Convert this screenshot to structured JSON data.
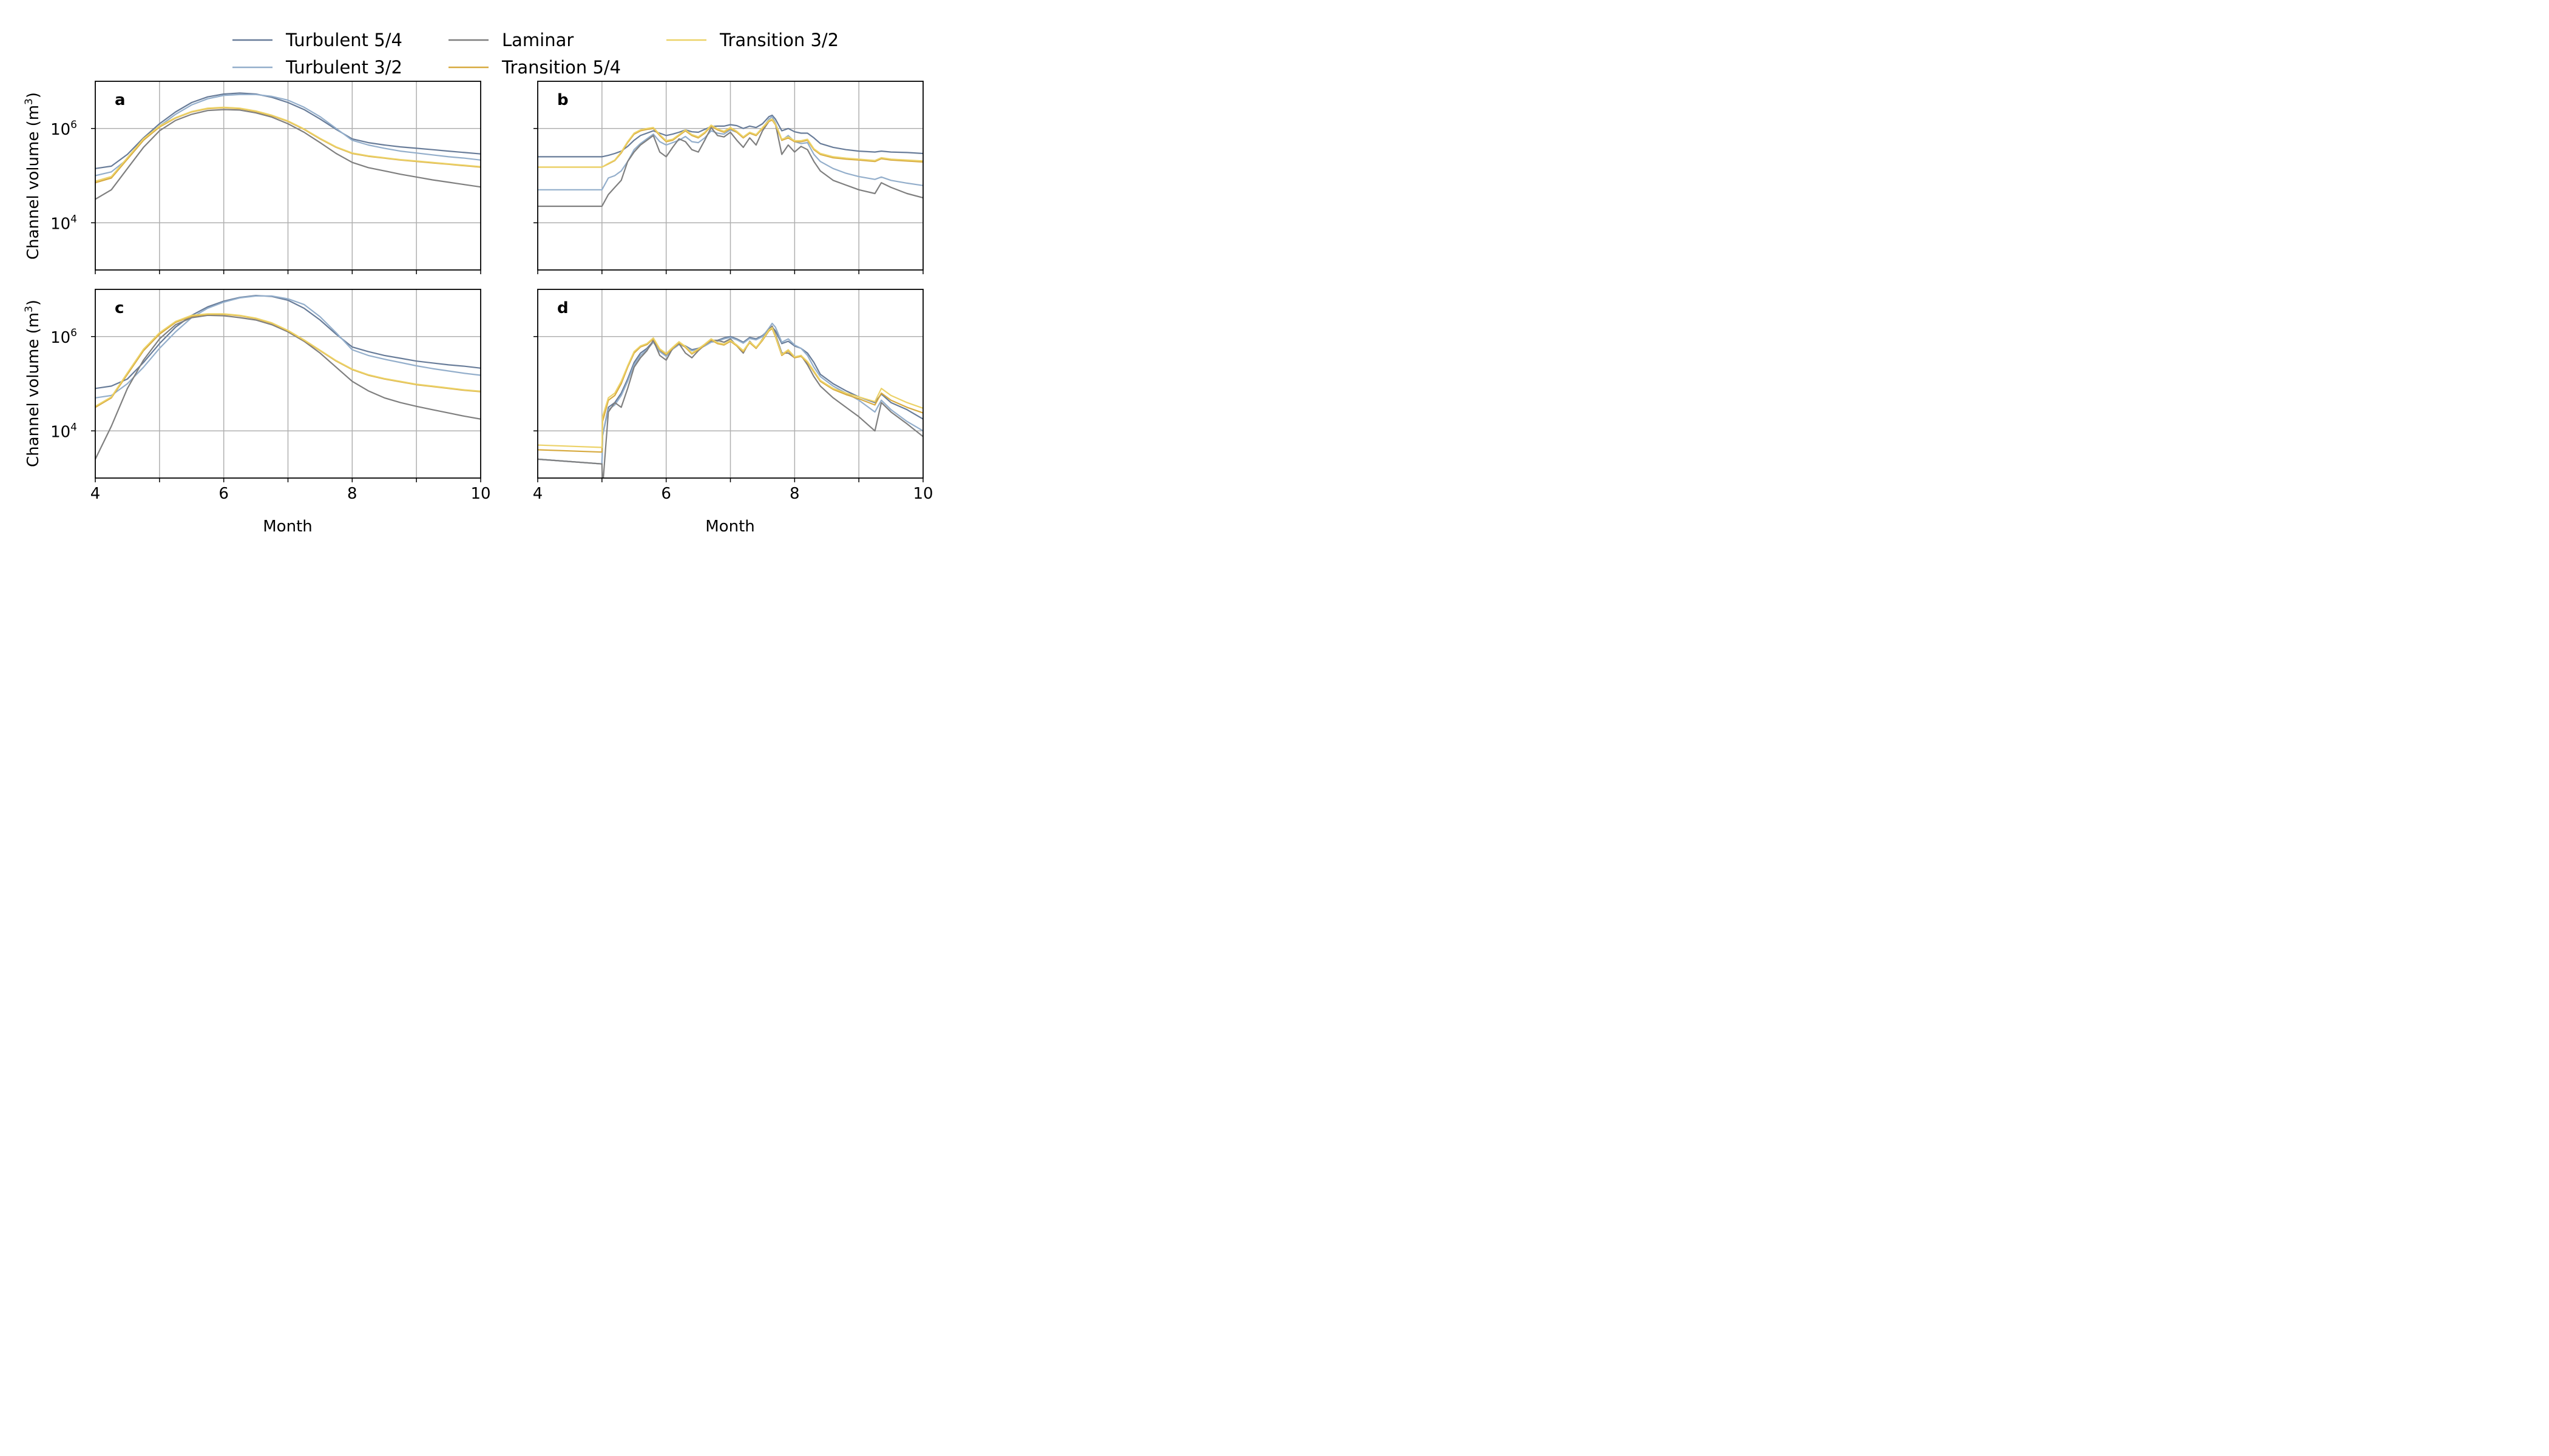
{
  "colors": {
    "turbulent_54": "#687c99",
    "turbulent_32": "#93aecb",
    "laminar": "#7f7f7f",
    "transition_54": "#d7aa3f",
    "transition_32": "#ecd268"
  },
  "legend": {
    "placement": "top-center",
    "items": [
      {
        "label": "Turbulent 5/4",
        "color": "#687c99"
      },
      {
        "label": "Laminar",
        "color": "#7f7f7f"
      },
      {
        "label": "Transition 3/2",
        "color": "#ecd268"
      },
      {
        "label": "Turbulent 3/2",
        "color": "#93aecb"
      },
      {
        "label": "Transition 5/4",
        "color": "#d7aa3f"
      }
    ]
  },
  "axes": {
    "ylabel_main": "Channel volume (m",
    "ylabel_sup": "3",
    "ylabel_close": ")",
    "xlabel": "Month",
    "xticks": [
      "4",
      "6",
      "8",
      "10"
    ],
    "yticks": [
      {
        "base": "10",
        "exp": "4"
      },
      {
        "base": "10",
        "exp": "6"
      }
    ]
  },
  "chart_data": [
    {
      "panel": "a",
      "type": "line",
      "log_y": true,
      "grid": true,
      "xlim": [
        4,
        10
      ],
      "ylim_log10": [
        3,
        7
      ],
      "x": [
        4.0,
        4.25,
        4.5,
        4.75,
        5.0,
        5.25,
        5.5,
        5.75,
        6.0,
        6.25,
        6.5,
        6.75,
        7.0,
        7.25,
        7.5,
        7.75,
        8.0,
        8.25,
        8.5,
        8.75,
        9.0,
        9.25,
        9.5,
        9.75,
        10.0
      ],
      "series": [
        {
          "name": "Turbulent 5/4",
          "log10_values": [
            5.15,
            5.2,
            5.45,
            5.8,
            6.1,
            6.35,
            6.55,
            6.67,
            6.73,
            6.75,
            6.73,
            6.66,
            6.55,
            6.4,
            6.2,
            5.98,
            5.78,
            5.7,
            5.65,
            5.61,
            5.58,
            5.55,
            5.52,
            5.49,
            5.46
          ]
        },
        {
          "name": "Turbulent 3/2",
          "log10_values": [
            5.0,
            5.08,
            5.35,
            5.75,
            6.05,
            6.3,
            6.5,
            6.63,
            6.7,
            6.72,
            6.72,
            6.68,
            6.6,
            6.45,
            6.25,
            6.0,
            5.75,
            5.65,
            5.58,
            5.52,
            5.48,
            5.44,
            5.4,
            5.37,
            5.33
          ]
        },
        {
          "name": "Laminar",
          "log10_values": [
            4.5,
            4.7,
            5.15,
            5.6,
            5.95,
            6.17,
            6.3,
            6.38,
            6.4,
            6.39,
            6.33,
            6.24,
            6.1,
            5.92,
            5.7,
            5.47,
            5.28,
            5.17,
            5.1,
            5.03,
            4.97,
            4.91,
            4.86,
            4.81,
            4.76
          ]
        },
        {
          "name": "Transition 5/4",
          "log10_values": [
            4.85,
            4.95,
            5.35,
            5.75,
            6.03,
            6.22,
            6.35,
            6.42,
            6.44,
            6.42,
            6.36,
            6.27,
            6.15,
            5.98,
            5.78,
            5.6,
            5.47,
            5.41,
            5.37,
            5.33,
            5.3,
            5.27,
            5.24,
            5.21,
            5.18
          ]
        },
        {
          "name": "Transition 3/2",
          "log10_values": [
            4.88,
            4.98,
            5.38,
            5.78,
            6.05,
            6.23,
            6.36,
            6.43,
            6.45,
            6.43,
            6.37,
            6.28,
            6.16,
            5.99,
            5.79,
            5.61,
            5.48,
            5.42,
            5.38,
            5.34,
            5.31,
            5.28,
            5.25,
            5.22,
            5.19
          ]
        }
      ]
    },
    {
      "panel": "b",
      "type": "line",
      "log_y": true,
      "grid": true,
      "xlim": [
        4,
        10
      ],
      "ylim_log10": [
        3,
        7
      ],
      "x": [
        4.0,
        5.0,
        5.1,
        5.2,
        5.3,
        5.4,
        5.5,
        5.6,
        5.7,
        5.8,
        5.9,
        6.0,
        6.1,
        6.2,
        6.3,
        6.4,
        6.5,
        6.6,
        6.7,
        6.8,
        6.9,
        7.0,
        7.1,
        7.2,
        7.3,
        7.4,
        7.5,
        7.6,
        7.65,
        7.7,
        7.8,
        7.9,
        8.0,
        8.1,
        8.2,
        8.3,
        8.4,
        8.6,
        8.8,
        9.0,
        9.25,
        9.35,
        9.5,
        9.75,
        10.0
      ],
      "series": [
        {
          "name": "Turbulent 5/4",
          "log10_values": [
            5.4,
            5.4,
            5.43,
            5.47,
            5.52,
            5.62,
            5.75,
            5.85,
            5.9,
            5.95,
            5.9,
            5.85,
            5.88,
            5.92,
            5.97,
            5.93,
            5.92,
            5.98,
            6.04,
            6.05,
            6.05,
            6.08,
            6.06,
            6.0,
            6.05,
            6.02,
            6.1,
            6.25,
            6.28,
            6.2,
            5.95,
            6.0,
            5.93,
            5.9,
            5.9,
            5.8,
            5.68,
            5.6,
            5.55,
            5.52,
            5.5,
            5.52,
            5.5,
            5.49,
            5.47
          ]
        },
        {
          "name": "Turbulent 3/2",
          "log10_values": [
            4.7,
            4.7,
            4.95,
            5.0,
            5.1,
            5.3,
            5.55,
            5.68,
            5.78,
            5.88,
            5.72,
            5.65,
            5.7,
            5.75,
            5.83,
            5.72,
            5.7,
            5.8,
            5.95,
            5.9,
            5.88,
            5.97,
            5.92,
            5.82,
            5.9,
            5.85,
            6.0,
            6.2,
            6.25,
            6.12,
            5.75,
            5.85,
            5.72,
            5.68,
            5.7,
            5.45,
            5.3,
            5.15,
            5.05,
            4.98,
            4.92,
            4.97,
            4.9,
            4.84,
            4.79
          ]
        },
        {
          "name": "Laminar",
          "log10_values": [
            4.35,
            4.35,
            4.6,
            4.75,
            4.9,
            5.3,
            5.5,
            5.65,
            5.75,
            5.85,
            5.5,
            5.4,
            5.6,
            5.78,
            5.72,
            5.55,
            5.5,
            5.75,
            6.02,
            5.85,
            5.82,
            5.92,
            5.75,
            5.6,
            5.8,
            5.65,
            5.95,
            6.15,
            6.2,
            6.1,
            5.45,
            5.65,
            5.5,
            5.62,
            5.55,
            5.3,
            5.1,
            4.9,
            4.8,
            4.7,
            4.62,
            4.85,
            4.75,
            4.62,
            4.53
          ]
        },
        {
          "name": "Transition 5/4",
          "log10_values": [
            5.18,
            5.18,
            5.25,
            5.32,
            5.48,
            5.7,
            5.88,
            5.95,
            5.98,
            6.0,
            5.85,
            5.72,
            5.75,
            5.85,
            5.95,
            5.85,
            5.8,
            5.9,
            6.05,
            5.97,
            5.92,
            6.0,
            5.92,
            5.8,
            5.9,
            5.85,
            6.0,
            6.15,
            6.18,
            6.08,
            5.75,
            5.8,
            5.72,
            5.72,
            5.75,
            5.55,
            5.45,
            5.38,
            5.35,
            5.33,
            5.3,
            5.36,
            5.33,
            5.31,
            5.29
          ]
        },
        {
          "name": "Transition 3/2",
          "log10_values": [
            5.18,
            5.18,
            5.26,
            5.33,
            5.5,
            5.72,
            5.9,
            5.97,
            6.0,
            6.02,
            5.87,
            5.74,
            5.77,
            5.87,
            5.97,
            5.87,
            5.82,
            5.92,
            6.07,
            5.99,
            5.94,
            6.02,
            5.94,
            5.82,
            5.92,
            5.87,
            6.02,
            6.17,
            6.2,
            6.1,
            5.77,
            5.82,
            5.74,
            5.74,
            5.77,
            5.57,
            5.47,
            5.4,
            5.37,
            5.35,
            5.32,
            5.38,
            5.35,
            5.33,
            5.31
          ]
        }
      ]
    },
    {
      "panel": "c",
      "type": "line",
      "log_y": true,
      "grid": true,
      "xlim": [
        4,
        10
      ],
      "ylim_log10": [
        3,
        7
      ],
      "x": [
        4.0,
        4.25,
        4.5,
        4.75,
        5.0,
        5.25,
        5.5,
        5.75,
        6.0,
        6.25,
        6.5,
        6.75,
        7.0,
        7.25,
        7.5,
        7.75,
        8.0,
        8.25,
        8.5,
        8.75,
        9.0,
        9.25,
        9.5,
        9.75,
        10.0
      ],
      "series": [
        {
          "name": "Turbulent 5/4",
          "log10_values": [
            4.9,
            4.95,
            5.1,
            5.45,
            5.85,
            6.2,
            6.45,
            6.63,
            6.75,
            6.83,
            6.87,
            6.85,
            6.77,
            6.6,
            6.35,
            6.05,
            5.78,
            5.68,
            5.6,
            5.54,
            5.48,
            5.44,
            5.4,
            5.37,
            5.33
          ]
        },
        {
          "name": "Turbulent 3/2",
          "log10_values": [
            4.7,
            4.75,
            5.0,
            5.35,
            5.75,
            6.1,
            6.4,
            6.6,
            6.73,
            6.82,
            6.86,
            6.86,
            6.8,
            6.68,
            6.42,
            6.08,
            5.72,
            5.6,
            5.52,
            5.45,
            5.38,
            5.32,
            5.27,
            5.22,
            5.18
          ]
        },
        {
          "name": "Laminar",
          "log10_values": [
            3.4,
            4.1,
            4.9,
            5.5,
            5.95,
            6.25,
            6.4,
            6.45,
            6.44,
            6.4,
            6.35,
            6.25,
            6.1,
            5.9,
            5.65,
            5.35,
            5.05,
            4.85,
            4.7,
            4.6,
            4.52,
            4.45,
            4.38,
            4.31,
            4.25
          ]
        },
        {
          "name": "Transition 5/4",
          "log10_values": [
            4.5,
            4.7,
            5.2,
            5.7,
            6.05,
            6.3,
            6.43,
            6.47,
            6.47,
            6.44,
            6.38,
            6.28,
            6.12,
            5.92,
            5.7,
            5.48,
            5.3,
            5.18,
            5.1,
            5.04,
            4.98,
            4.94,
            4.9,
            4.86,
            4.83
          ]
        },
        {
          "name": "Transition 3/2",
          "log10_values": [
            4.52,
            4.72,
            5.23,
            5.73,
            6.08,
            6.32,
            6.45,
            6.48,
            6.48,
            6.45,
            6.39,
            6.29,
            6.13,
            5.93,
            5.71,
            5.49,
            5.31,
            5.19,
            5.11,
            5.05,
            4.99,
            4.95,
            4.91,
            4.87,
            4.84
          ]
        }
      ]
    },
    {
      "panel": "d",
      "type": "line",
      "log_y": true,
      "grid": true,
      "xlim": [
        4,
        10
      ],
      "ylim_log10": [
        3,
        7
      ],
      "x": [
        4.0,
        5.0,
        5.01,
        5.1,
        5.2,
        5.3,
        5.4,
        5.5,
        5.6,
        5.7,
        5.8,
        5.9,
        6.0,
        6.1,
        6.2,
        6.3,
        6.4,
        6.5,
        6.6,
        6.7,
        6.8,
        6.9,
        7.0,
        7.1,
        7.2,
        7.3,
        7.4,
        7.5,
        7.6,
        7.65,
        7.7,
        7.8,
        7.9,
        8.0,
        8.1,
        8.2,
        8.3,
        8.4,
        8.6,
        8.8,
        9.0,
        9.25,
        9.35,
        9.5,
        9.75,
        10.0
      ],
      "series": [
        {
          "name": "Turbulent 5/4",
          "log10_values": [
            3.4,
            3.3,
            3.9,
            4.5,
            4.6,
            4.8,
            5.1,
            5.45,
            5.65,
            5.75,
            5.9,
            5.7,
            5.6,
            5.75,
            5.85,
            5.8,
            5.72,
            5.75,
            5.82,
            5.9,
            5.92,
            5.97,
            6.0,
            5.95,
            5.88,
            5.98,
            5.95,
            6.02,
            6.15,
            6.2,
            6.12,
            5.85,
            5.9,
            5.8,
            5.75,
            5.65,
            5.45,
            5.2,
            5.0,
            4.85,
            4.72,
            4.6,
            4.78,
            4.6,
            4.45,
            4.25
          ]
        },
        {
          "name": "Turbulent 3/2",
          "log10_values": [
            3.4,
            3.3,
            3.9,
            4.45,
            4.55,
            4.75,
            5.05,
            5.4,
            5.6,
            5.72,
            5.88,
            5.68,
            5.58,
            5.73,
            5.83,
            5.78,
            5.7,
            5.73,
            5.8,
            5.88,
            5.9,
            5.95,
            5.98,
            5.93,
            5.86,
            5.96,
            5.93,
            6.0,
            6.18,
            6.28,
            6.2,
            5.88,
            5.95,
            5.82,
            5.75,
            5.6,
            5.35,
            5.15,
            4.95,
            4.8,
            4.65,
            4.4,
            4.65,
            4.45,
            4.2,
            4.0
          ]
        },
        {
          "name": "Laminar",
          "log10_values": [
            3.4,
            3.3,
            2.8,
            4.4,
            4.6,
            4.5,
            4.9,
            5.35,
            5.55,
            5.7,
            5.92,
            5.6,
            5.5,
            5.75,
            5.85,
            5.65,
            5.55,
            5.7,
            5.82,
            5.92,
            5.92,
            5.88,
            5.95,
            5.8,
            5.65,
            5.9,
            5.75,
            5.95,
            6.15,
            6.22,
            6.05,
            5.65,
            5.65,
            5.55,
            5.6,
            5.4,
            5.15,
            4.95,
            4.7,
            4.5,
            4.3,
            4.0,
            4.6,
            4.4,
            4.15,
            3.88
          ]
        },
        {
          "name": "Transition 5/4",
          "log10_values": [
            3.6,
            3.55,
            4.2,
            4.65,
            4.75,
            5.0,
            5.35,
            5.65,
            5.78,
            5.83,
            5.95,
            5.72,
            5.62,
            5.75,
            5.87,
            5.77,
            5.63,
            5.72,
            5.82,
            5.93,
            5.85,
            5.82,
            5.9,
            5.8,
            5.68,
            5.87,
            5.75,
            5.92,
            6.12,
            6.17,
            6.0,
            5.6,
            5.7,
            5.55,
            5.58,
            5.45,
            5.25,
            5.05,
            4.88,
            4.77,
            4.68,
            4.55,
            4.8,
            4.65,
            4.5,
            4.38
          ]
        },
        {
          "name": "Transition 3/2",
          "log10_values": [
            3.7,
            3.65,
            4.3,
            4.7,
            4.8,
            5.05,
            5.38,
            5.68,
            5.8,
            5.85,
            5.97,
            5.74,
            5.64,
            5.77,
            5.89,
            5.79,
            5.65,
            5.74,
            5.84,
            5.95,
            5.87,
            5.84,
            5.92,
            5.82,
            5.7,
            5.89,
            5.77,
            5.94,
            6.14,
            6.19,
            6.02,
            5.62,
            5.72,
            5.57,
            5.6,
            5.47,
            5.27,
            5.07,
            4.9,
            4.8,
            4.72,
            4.62,
            4.9,
            4.75,
            4.6,
            4.48
          ]
        }
      ]
    }
  ]
}
